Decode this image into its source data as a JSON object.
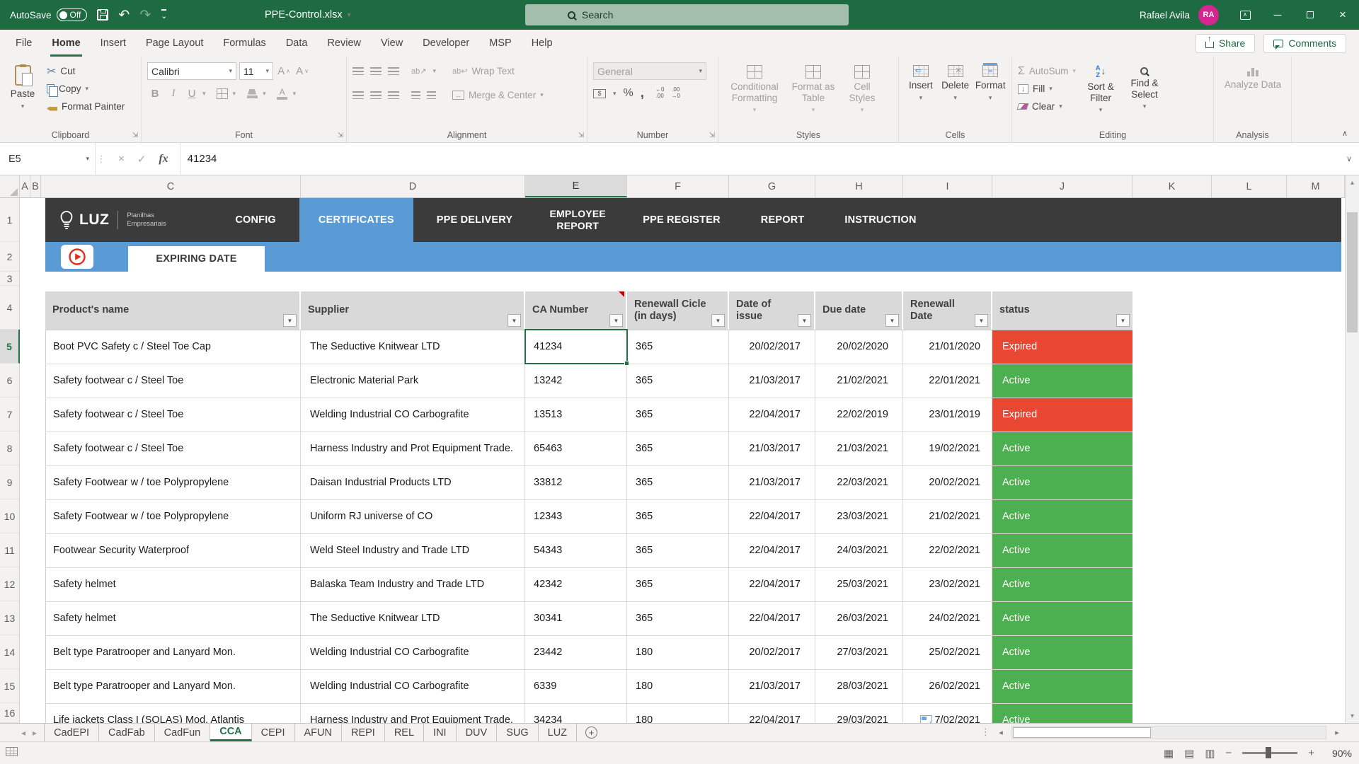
{
  "colors": {
    "title_green": "#1E6B41",
    "excel_green": "#217346",
    "nav_dark": "#3B3B3B",
    "accent_blue": "#5B9BD5",
    "status_red": "#E84832",
    "status_green": "#4CAF50",
    "avatar_pink": "#D5258F"
  },
  "title_bar": {
    "autosave_label": "AutoSave",
    "autosave_state": "Off",
    "filename": "PPE-Control.xlsx",
    "search_placeholder": "Search",
    "user_name": "Rafael Avila",
    "user_initials": "RA"
  },
  "menu": {
    "tabs": [
      "File",
      "Home",
      "Insert",
      "Page Layout",
      "Formulas",
      "Data",
      "Review",
      "View",
      "Developer",
      "MSP",
      "Help"
    ],
    "active": "Home",
    "share_label": "Share",
    "comments_label": "Comments"
  },
  "ribbon": {
    "clipboard": {
      "label": "Clipboard",
      "paste": "Paste",
      "cut": "Cut",
      "copy": "Copy",
      "format_painter": "Format Painter"
    },
    "font": {
      "label": "Font",
      "font_name": "Calibri",
      "font_size": "11",
      "bold": "B",
      "italic": "I",
      "underline": "U"
    },
    "alignment": {
      "label": "Alignment",
      "wrap_text": "Wrap Text",
      "merge_center": "Merge & Center"
    },
    "number": {
      "label": "Number",
      "format": "General"
    },
    "styles": {
      "label": "Styles",
      "conditional": "Conditional Formatting",
      "format_table": "Format as Table",
      "cell_styles": "Cell Styles"
    },
    "cells": {
      "label": "Cells",
      "insert": "Insert",
      "delete": "Delete",
      "format": "Format"
    },
    "editing": {
      "label": "Editing",
      "autosum": "AutoSum",
      "fill": "Fill",
      "clear": "Clear",
      "sort_filter": "Sort & Filter",
      "find_select": "Find & Select"
    },
    "analysis": {
      "label": "Analysis",
      "analyze_data": "Analyze Data"
    }
  },
  "formula_bar": {
    "name_box": "E5",
    "value": "41234"
  },
  "grid": {
    "column_letters": [
      "A",
      "B",
      "C",
      "D",
      "E",
      "F",
      "G",
      "H",
      "I",
      "J",
      "K",
      "L",
      "M"
    ],
    "row_numbers": [
      1,
      2,
      3,
      4,
      5,
      6,
      7,
      8,
      9,
      10,
      11,
      12,
      13,
      14,
      15,
      16
    ],
    "selected_column": "E",
    "selected_row": 5
  },
  "workbook_nav": {
    "brand_name": "LUZ",
    "brand_tagline": "Planilhas Empresariais",
    "tabs": [
      {
        "label": "CONFIG"
      },
      {
        "label": "CERTIFICATES",
        "active": true
      },
      {
        "label": "PPE DELIVERY"
      },
      {
        "label": "EMPLOYEE REPORT",
        "stacked": true
      },
      {
        "label": "PPE REGISTER"
      },
      {
        "label": "REPORT"
      },
      {
        "label": "INSTRUCTION"
      }
    ],
    "subtab": "EXPIRING DATE"
  },
  "table": {
    "columns": [
      {
        "label": "Product's name"
      },
      {
        "label": "Supplier"
      },
      {
        "label": "CA Number",
        "note": true
      },
      {
        "label": "Renewall Cicle (in days)"
      },
      {
        "label": "Date of issue"
      },
      {
        "label": "Due date"
      },
      {
        "label": "Renewall Date"
      },
      {
        "label": "status"
      }
    ],
    "rows": [
      {
        "product": "Boot PVC Safety c / Steel Toe Cap",
        "supplier": "The Seductive Knitwear LTD",
        "ca": "41234",
        "cycle": "365",
        "issue": "20/02/2017",
        "due": "20/02/2020",
        "renewal": "21/01/2020",
        "status": "Expired"
      },
      {
        "product": "Safety footwear c / Steel Toe",
        "supplier": "Electronic Material Park",
        "ca": "13242",
        "cycle": "365",
        "issue": "21/03/2017",
        "due": "21/02/2021",
        "renewal": "22/01/2021",
        "status": "Active"
      },
      {
        "product": "Safety footwear c / Steel Toe",
        "supplier": "Welding Industrial CO Carbografite",
        "ca": "13513",
        "cycle": "365",
        "issue": "22/04/2017",
        "due": "22/02/2019",
        "renewal": "23/01/2019",
        "status": "Expired"
      },
      {
        "product": "Safety footwear c / Steel Toe",
        "supplier": "Harness Industry and Prot Equipment Trade.",
        "ca": "65463",
        "cycle": "365",
        "issue": "21/03/2017",
        "due": "21/03/2021",
        "renewal": "19/02/2021",
        "status": "Active"
      },
      {
        "product": "Safety Footwear w / toe Polypropylene",
        "supplier": "Daisan Industrial Products LTD",
        "ca": "33812",
        "cycle": "365",
        "issue": "21/03/2017",
        "due": "22/03/2021",
        "renewal": "20/02/2021",
        "status": "Active"
      },
      {
        "product": "Safety Footwear w / toe Polypropylene",
        "supplier": "Uniform RJ universe of CO",
        "ca": "12343",
        "cycle": "365",
        "issue": "22/04/2017",
        "due": "23/03/2021",
        "renewal": "21/02/2021",
        "status": "Active"
      },
      {
        "product": "Footwear Security Waterproof",
        "supplier": "Weld Steel Industry and Trade LTD",
        "ca": "54343",
        "cycle": "365",
        "issue": "22/04/2017",
        "due": "24/03/2021",
        "renewal": "22/02/2021",
        "status": "Active"
      },
      {
        "product": "Safety helmet",
        "supplier": "Balaska Team Industry and Trade LTD",
        "ca": "42342",
        "cycle": "365",
        "issue": "22/04/2017",
        "due": "25/03/2021",
        "renewal": "23/02/2021",
        "status": "Active"
      },
      {
        "product": "Safety helmet",
        "supplier": "The Seductive Knitwear LTD",
        "ca": "30341",
        "cycle": "365",
        "issue": "22/04/2017",
        "due": "26/03/2021",
        "renewal": "24/02/2021",
        "status": "Active"
      },
      {
        "product": "Belt type Paratrooper and Lanyard Mon.",
        "supplier": "Welding Industrial CO Carbografite",
        "ca": "23442",
        "cycle": "180",
        "issue": "20/02/2017",
        "due": "27/03/2021",
        "renewal": "25/02/2021",
        "status": "Active"
      },
      {
        "product": "Belt type Paratrooper and Lanyard Mon.",
        "supplier": "Welding Industrial CO Carbografite",
        "ca": "6339",
        "cycle": "180",
        "issue": "21/03/2017",
        "due": "28/03/2021",
        "renewal": "26/02/2021",
        "status": "Active"
      },
      {
        "product": "Life jackets Class I (SOLAS) Mod. Atlantis",
        "supplier": "Harness Industry and Prot Equipment Trade.",
        "ca": "34234",
        "cycle": "180",
        "issue": "22/04/2017",
        "due": "29/03/2021",
        "renewal": "7/02/2021",
        "status": "Active",
        "renewal_icon": true
      }
    ]
  },
  "sheet_tabs": {
    "tabs": [
      "CadEPI",
      "CadFab",
      "CadFun",
      "CCA",
      "CEPI",
      "AFUN",
      "REPI",
      "REL",
      "INI",
      "DUV",
      "SUG",
      "LUZ"
    ],
    "active": "CCA"
  },
  "status_bar": {
    "zoom": "90%"
  }
}
